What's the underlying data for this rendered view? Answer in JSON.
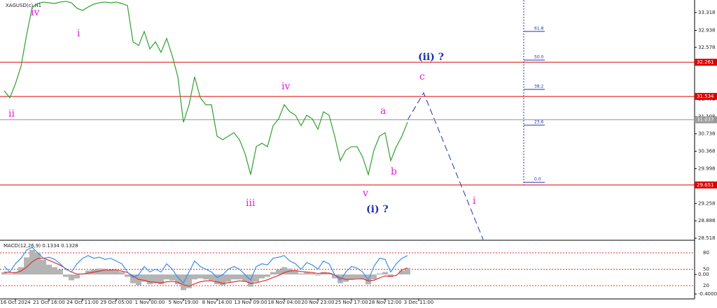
{
  "chart_data": [
    {
      "type": "line",
      "title": "XAGUSD(c),H1",
      "categories": [
        null,
        null,
        "16 Oct 2024",
        null,
        null,
        null,
        null,
        null,
        "21 Oct 16:00",
        null,
        null,
        null,
        null,
        null,
        "24 Oct 11:00",
        null,
        null,
        null,
        null,
        null,
        "29 Oct 05:00",
        null,
        null,
        null,
        null,
        null,
        "1 Nov 00:00",
        null,
        null,
        null,
        null,
        null,
        "5 Nov 19:00",
        null,
        null,
        null,
        null,
        null,
        "8 Nov 14:00",
        null,
        null,
        null,
        null,
        null,
        "13 Nov 09:00",
        null,
        null,
        null,
        null,
        null,
        "18 Nov 04:00",
        null,
        null,
        null,
        null,
        null,
        "20 Nov 23:00",
        null,
        null,
        null,
        null,
        null,
        "25 Nov 17:00",
        null,
        null,
        null,
        null,
        null,
        "28 Nov 12:00",
        null,
        null,
        null,
        null,
        null,
        "3 Dec 11:00"
      ],
      "series": [
        {
          "color": "#2ea02e",
          "values": [
            31.654,
            31.505,
            31.802,
            32.174,
            32.843,
            33.437,
            33.511,
            33.541,
            33.526,
            33.511,
            33.541,
            33.556,
            33.526,
            33.407,
            33.363,
            33.437,
            33.496,
            33.526,
            33.541,
            33.526,
            33.541,
            33.511,
            33.467,
            32.694,
            32.62,
            32.917,
            32.545,
            32.694,
            32.471,
            32.768,
            32.397,
            31.951,
            30.985,
            31.357,
            31.951,
            31.505,
            31.357,
            31.357,
            30.688,
            30.614,
            30.688,
            30.762,
            30.614,
            30.316,
            29.871,
            30.465,
            30.539,
            30.465,
            30.911,
            31.059,
            31.357,
            31.208,
            31.134,
            30.911,
            31.134,
            31.059,
            30.837,
            31.208,
            31.134,
            30.688,
            30.168,
            30.391,
            30.465,
            30.465,
            30.242,
            29.871,
            30.391,
            30.688,
            30.762,
            30.168,
            30.465,
            30.688,
            30.985,
            null,
            null
          ]
        }
      ],
      "ylim": [
        28.49,
        33.585
      ],
      "yticks": [
        33.318,
        32.938,
        32.578,
        31.478,
        31.108,
        30.738,
        30.368,
        29.998,
        29.258,
        28.888,
        28.518
      ],
      "levels": [
        {
          "value": 32.261,
          "color": "#e00000"
        },
        {
          "value": 31.534,
          "color": "#e00000"
        },
        {
          "value": 31.037,
          "color": "#9a9a9a"
        },
        {
          "value": 29.651,
          "color": "#e00000"
        }
      ],
      "fib": [
        {
          "value": 32.917,
          "label": "61.8"
        },
        {
          "value": 32.308,
          "label": "50.0"
        },
        {
          "value": 31.684,
          "label": "38.2"
        },
        {
          "value": 30.925,
          "label": "23.6"
        },
        {
          "value": 29.707,
          "label": "0.0"
        }
      ],
      "wave_labels": [
        "iv",
        "i",
        "ii",
        "iii",
        "iv",
        "v",
        "a",
        "b",
        "c",
        "(ii) ?",
        "(i) ?",
        "i"
      ]
    },
    {
      "type": "macd",
      "title": "MACD(12,26,9) 0.1334 0.1328",
      "series": [
        {
          "color": "#b4b4b4",
          "values": [
            0.05,
            0.02,
            0.05,
            0.15,
            0.35,
            0.5,
            0.45,
            0.3,
            0.2,
            0.15,
            0.1,
            -0.05,
            -0.12,
            -0.08,
            0.02,
            0.08,
            0.1,
            0.12,
            0.12,
            0.1,
            0.08,
            0.05,
            -0.05,
            -0.18,
            -0.22,
            -0.15,
            -0.2,
            -0.18,
            -0.2,
            -0.1,
            -0.12,
            -0.2,
            -0.32,
            -0.28,
            -0.1,
            -0.08,
            -0.1,
            -0.12,
            -0.2,
            -0.22,
            -0.15,
            -0.1,
            -0.1,
            -0.15,
            -0.25,
            -0.15,
            -0.08,
            -0.05,
            0.05,
            0.1,
            0.15,
            0.12,
            0.08,
            0.02,
            0.04,
            0.03,
            -0.02,
            0.05,
            0.03,
            -0.08,
            -0.18,
            -0.15,
            -0.1,
            -0.08,
            -0.1,
            -0.2,
            -0.1,
            0.02,
            0.05,
            -0.05,
            0.0,
            0.08,
            0.1334,
            null,
            null
          ]
        },
        {
          "color": "#e03030",
          "values": [
            0.05,
            0.04,
            0.04,
            0.07,
            0.15,
            0.26,
            0.33,
            0.33,
            0.29,
            0.24,
            0.19,
            0.12,
            0.05,
            0.01,
            0.01,
            0.03,
            0.05,
            0.07,
            0.09,
            0.09,
            0.09,
            0.07,
            0.04,
            -0.03,
            -0.1,
            -0.12,
            -0.15,
            -0.16,
            -0.17,
            -0.15,
            -0.14,
            -0.16,
            -0.21,
            -0.24,
            -0.19,
            -0.15,
            -0.13,
            -0.13,
            -0.15,
            -0.18,
            -0.17,
            -0.15,
            -0.13,
            -0.14,
            -0.18,
            -0.17,
            -0.14,
            -0.11,
            -0.06,
            -0.02,
            0.04,
            0.07,
            0.08,
            0.06,
            0.05,
            0.04,
            0.02,
            0.03,
            0.03,
            -0.01,
            -0.07,
            -0.1,
            -0.1,
            -0.09,
            -0.09,
            -0.13,
            -0.12,
            -0.07,
            -0.03,
            -0.04,
            -0.02,
            0.09,
            0.1328,
            null,
            null
          ]
        },
        {
          "color": "#3a8ee8",
          "axis": "y2",
          "values": [
            55,
            45,
            60,
            70,
            85,
            90,
            80,
            70,
            72,
            68,
            60,
            50,
            45,
            60,
            70,
            75,
            70,
            72,
            68,
            70,
            65,
            60,
            45,
            35,
            40,
            55,
            45,
            50,
            45,
            60,
            50,
            35,
            25,
            45,
            65,
            55,
            50,
            45,
            35,
            40,
            50,
            55,
            50,
            40,
            30,
            55,
            60,
            58,
            70,
            72,
            75,
            65,
            60,
            50,
            62,
            58,
            50,
            65,
            60,
            40,
            30,
            45,
            55,
            52,
            45,
            30,
            55,
            70,
            68,
            45,
            60,
            70,
            75,
            null,
            null
          ]
        }
      ],
      "ylim": [
        -0.5,
        0.643
      ],
      "yticks": [
        {
          "value": 0,
          "label": "0.00"
        },
        {
          "value": -0.4,
          "label": "-0.4000"
        }
      ],
      "y2lim": [
        -4.3,
        97.9
      ],
      "y2ticks": [
        80,
        50,
        20
      ],
      "grid": true
    }
  ]
}
